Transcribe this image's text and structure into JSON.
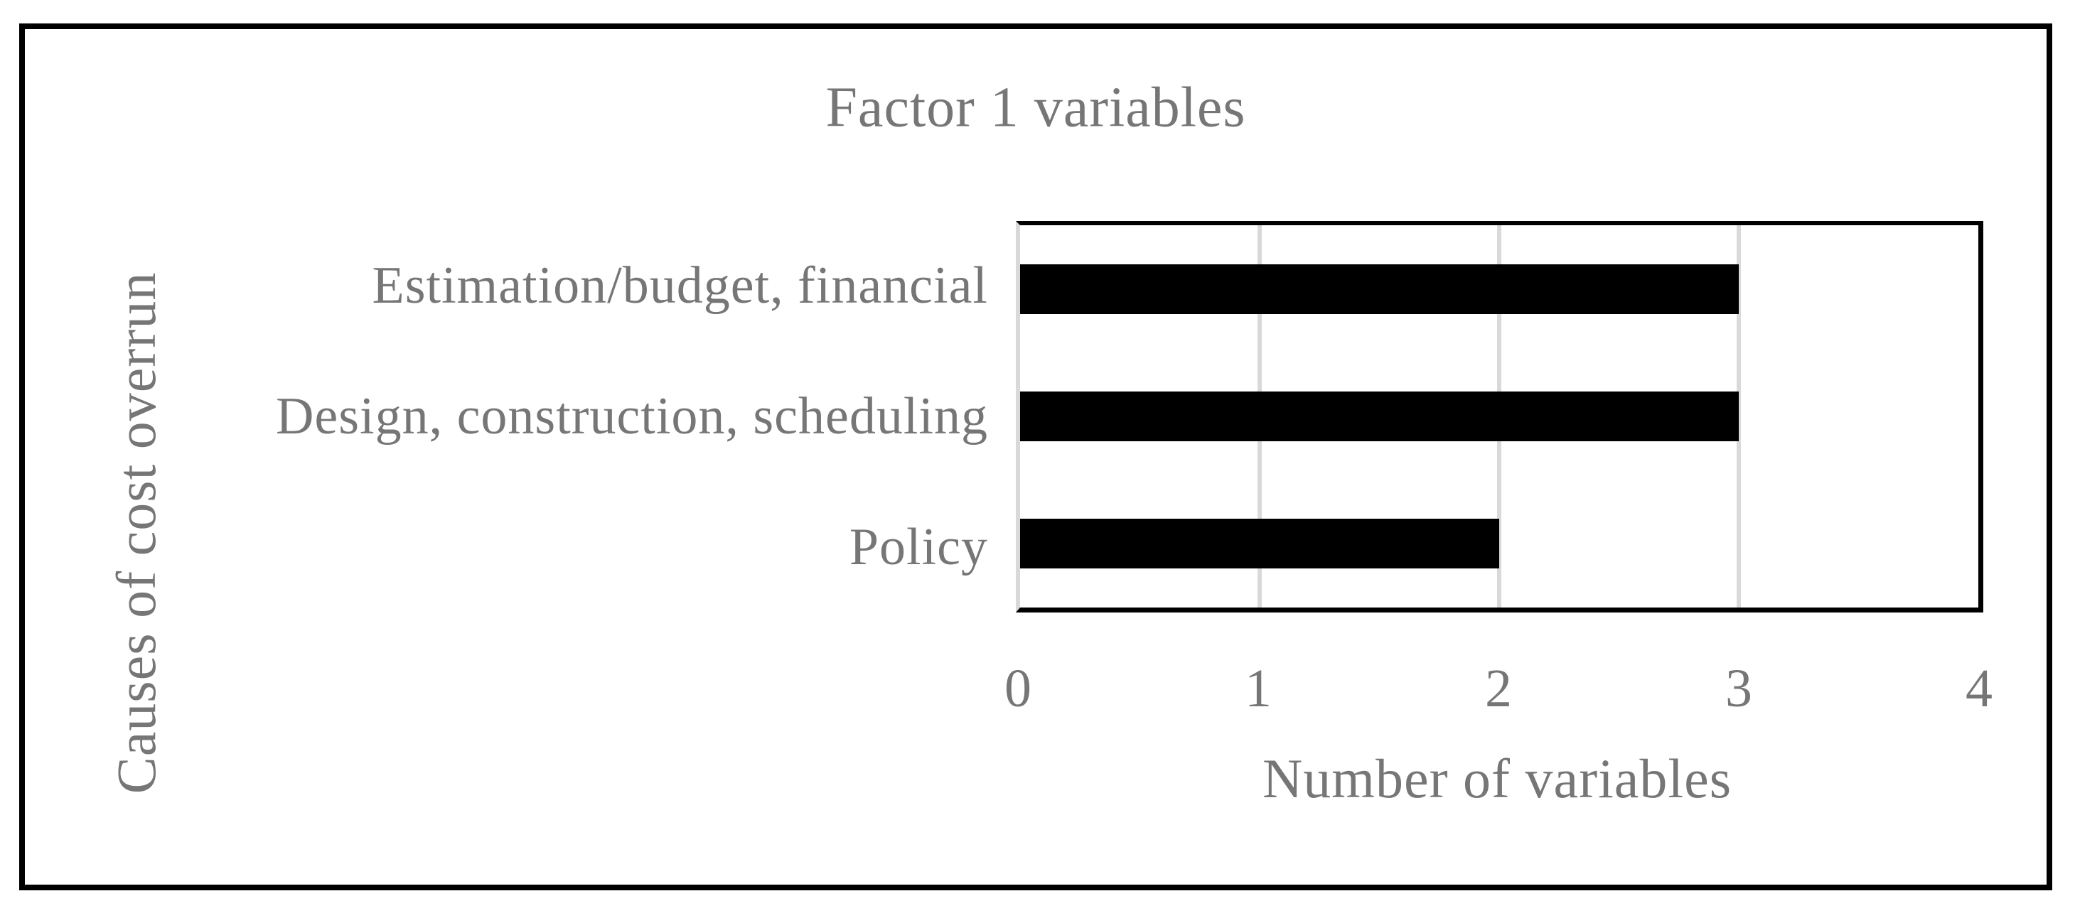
{
  "chart_data": {
    "type": "bar",
    "orientation": "horizontal",
    "title": "Factor 1 variables",
    "categories": [
      "Estimation/budget, financial",
      "Design, construction, scheduling",
      "Policy"
    ],
    "values": [
      3,
      3,
      2
    ],
    "xlabel": "Number of variables",
    "ylabel": "Causes of cost overrun",
    "xlim": [
      0,
      4
    ],
    "xticks": [
      0,
      1,
      2,
      3,
      4
    ],
    "grid": true,
    "legend_position": "none",
    "colors": {
      "bar": "#000000",
      "grid": "#d9d9d9",
      "text": "#767676",
      "border": "#000000"
    }
  }
}
